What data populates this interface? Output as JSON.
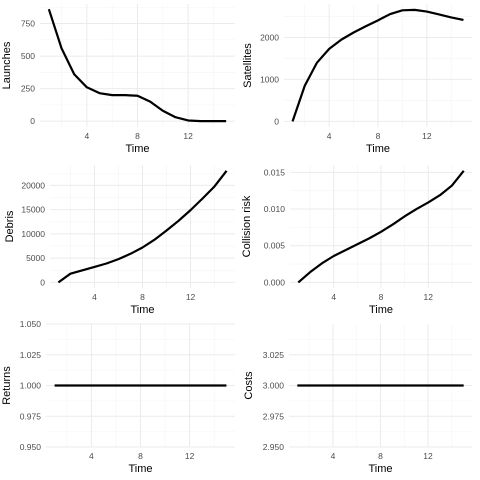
{
  "chart_data": [
    {
      "type": "line",
      "xlabel": "Time",
      "ylabel": "Launches",
      "x": [
        1,
        2,
        3,
        4,
        5,
        6,
        7,
        8,
        9,
        10,
        11,
        12,
        13,
        14,
        15
      ],
      "values": [
        860,
        560,
        360,
        260,
        215,
        200,
        200,
        195,
        150,
        80,
        30,
        5,
        0,
        0,
        0
      ],
      "xlim": [
        0.3,
        15.7
      ],
      "ylim": [
        -45,
        900
      ],
      "xticks": [
        4,
        8,
        12
      ],
      "yticks": [
        0,
        250,
        500,
        750
      ],
      "ytick_labels": [
        "0",
        "250",
        "500",
        "750"
      ],
      "grid": true
    },
    {
      "type": "line",
      "xlabel": "Time",
      "ylabel": "Satellites",
      "x": [
        1,
        2,
        3,
        4,
        5,
        6,
        7,
        8,
        9,
        10,
        11,
        12,
        13,
        14,
        15
      ],
      "values": [
        0,
        850,
        1400,
        1730,
        1950,
        2120,
        2270,
        2410,
        2560,
        2650,
        2660,
        2620,
        2550,
        2480,
        2420
      ],
      "xlim": [
        0.3,
        15.7
      ],
      "ylim": [
        -135,
        2800
      ],
      "xticks": [
        4,
        8,
        12
      ],
      "yticks": [
        0,
        1000,
        2000
      ],
      "ytick_labels": [
        "0",
        "1000",
        "2000"
      ],
      "grid": true
    },
    {
      "type": "line",
      "xlabel": "Time",
      "ylabel": "Debris",
      "x": [
        1,
        2,
        3,
        4,
        5,
        6,
        7,
        8,
        9,
        10,
        11,
        12,
        13,
        14,
        15
      ],
      "values": [
        0,
        1800,
        2500,
        3200,
        3900,
        4800,
        5900,
        7200,
        8800,
        10700,
        12700,
        14900,
        17300,
        19800,
        23000
      ],
      "xlim": [
        0.3,
        15.7
      ],
      "ylim": [
        -1150,
        24200
      ],
      "xticks": [
        4,
        8,
        12
      ],
      "yticks": [
        0,
        5000,
        10000,
        15000,
        20000
      ],
      "ytick_labels": [
        "0",
        "5000",
        "10000",
        "15000",
        "20000"
      ],
      "grid": true
    },
    {
      "type": "line",
      "xlabel": "Time",
      "ylabel": "Collision risk",
      "x": [
        1,
        2,
        3,
        4,
        5,
        6,
        7,
        8,
        9,
        10,
        11,
        12,
        13,
        14,
        15
      ],
      "values": [
        0,
        0.0014,
        0.0026,
        0.0036,
        0.0044,
        0.0052,
        0.006,
        0.0069,
        0.0079,
        0.009,
        0.01,
        0.0109,
        0.0119,
        0.0132,
        0.0152
      ],
      "xlim": [
        0.3,
        15.7
      ],
      "ylim": [
        -0.00076,
        0.016
      ],
      "xticks": [
        4,
        8,
        12
      ],
      "yticks": [
        0,
        0.005,
        0.01,
        0.015
      ],
      "ytick_labels": [
        "0.000",
        "0.005",
        "0.010",
        "0.015"
      ],
      "grid": true
    },
    {
      "type": "line",
      "xlabel": "Time",
      "ylabel": "Returns",
      "x": [
        1,
        2,
        3,
        4,
        5,
        6,
        7,
        8,
        9,
        10,
        11,
        12,
        13,
        14,
        15
      ],
      "values": [
        1,
        1,
        1,
        1,
        1,
        1,
        1,
        1,
        1,
        1,
        1,
        1,
        1,
        1,
        1
      ],
      "xlim": [
        0.3,
        15.7
      ],
      "ylim": [
        0.95,
        1.05
      ],
      "xticks": [
        4,
        8,
        12
      ],
      "yticks": [
        0.95,
        0.975,
        1,
        1.025,
        1.05
      ],
      "ytick_labels": [
        "0.950",
        "0.975",
        "1.000",
        "1.025",
        "1.050"
      ],
      "grid": true
    },
    {
      "type": "line",
      "xlabel": "Time",
      "ylabel": "Costs",
      "x": [
        1,
        2,
        3,
        4,
        5,
        6,
        7,
        8,
        9,
        10,
        11,
        12,
        13,
        14,
        15
      ],
      "values": [
        3,
        3,
        3,
        3,
        3,
        3,
        3,
        3,
        3,
        3,
        3,
        3,
        3,
        3,
        3
      ],
      "xlim": [
        0.3,
        15.7
      ],
      "ylim": [
        2.95,
        3.05
      ],
      "xticks": [
        4,
        8,
        12
      ],
      "yticks": [
        2.95,
        2.975,
        3,
        3.025
      ],
      "ytick_labels": [
        "2.950",
        "2.975",
        "3.000",
        "3.025"
      ],
      "grid": true
    }
  ]
}
